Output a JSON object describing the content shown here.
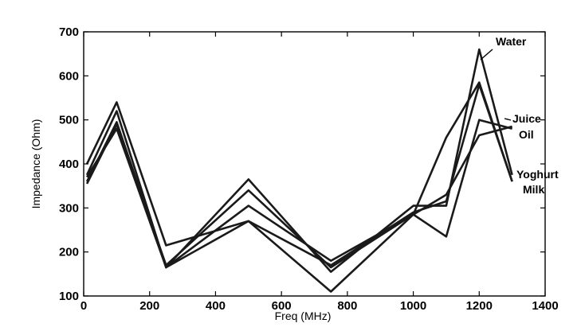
{
  "chart_data": {
    "type": "line",
    "xlabel": "Freq  (MHz)",
    "ylabel": "Impedance (Ohm)",
    "xlim": [
      0,
      1400
    ],
    "ylim": [
      100,
      700
    ],
    "xticks": [
      0,
      200,
      400,
      600,
      800,
      1000,
      1200,
      1400
    ],
    "yticks": [
      100,
      200,
      300,
      400,
      500,
      600,
      700
    ],
    "x": [
      10,
      100,
      250,
      500,
      750,
      1000,
      1100,
      1200,
      1300
    ],
    "series": [
      {
        "name": "Water",
        "values": [
          400,
          540,
          215,
          270,
          110,
          285,
          460,
          585,
          360
        ]
      },
      {
        "name": "Juice",
        "values": [
          375,
          520,
          165,
          365,
          155,
          305,
          305,
          660,
          375
        ]
      },
      {
        "name": "Oil",
        "values": [
          355,
          490,
          170,
          340,
          165,
          285,
          235,
          500,
          480
        ]
      },
      {
        "name": "Yoghurt",
        "values": [
          370,
          480,
          165,
          305,
          180,
          285,
          330,
          465,
          485
        ]
      },
      {
        "name": "Milk",
        "values": [
          360,
          495,
          165,
          270,
          170,
          290,
          315,
          580,
          360
        ]
      }
    ],
    "annotations": [
      {
        "text": "Water",
        "series": "Water"
      },
      {
        "text": "Juice",
        "series": "Juice"
      },
      {
        "text": "Oil",
        "series": "Oil"
      },
      {
        "text": "Yoghurt",
        "series": "Yoghurt"
      },
      {
        "text": "Milk",
        "series": "Milk"
      }
    ],
    "grid": false,
    "legend": "none"
  }
}
